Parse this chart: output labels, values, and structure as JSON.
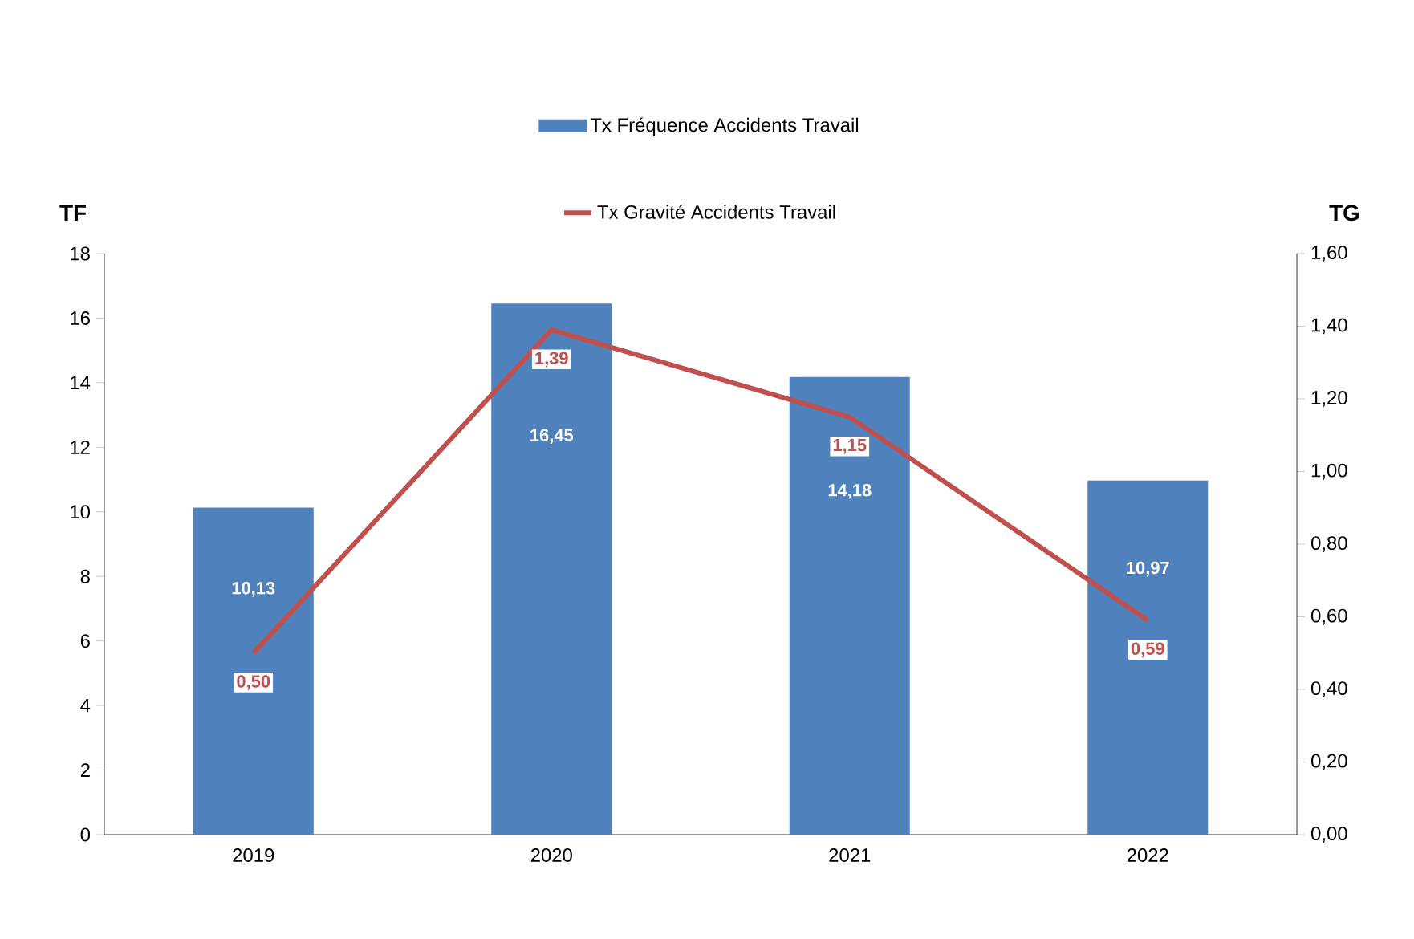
{
  "chart_data": {
    "type": "bar",
    "categories": [
      "2019",
      "2020",
      "2021",
      "2022"
    ],
    "ylabel": "TF",
    "y2label": "TG",
    "ylim": [
      0,
      18
    ],
    "yticks": [
      0,
      2,
      4,
      6,
      8,
      10,
      12,
      14,
      16,
      18
    ],
    "y2lim": [
      0,
      1.6
    ],
    "y2ticks": [
      {
        "value": 0,
        "label": "0,00"
      },
      {
        "value": 0.2,
        "label": "0,20"
      },
      {
        "value": 0.4,
        "label": "0,40"
      },
      {
        "value": 0.6,
        "label": "0,60"
      },
      {
        "value": 0.8,
        "label": "0,80"
      },
      {
        "value": 1.0,
        "label": "1,00"
      },
      {
        "value": 1.2,
        "label": "1,20"
      },
      {
        "value": 1.4,
        "label": "1,40"
      },
      {
        "value": 1.6,
        "label": "1,60"
      }
    ],
    "legend": "top",
    "series": [
      {
        "name": "Tx Fréquence Accidents Travail",
        "color": "#4f81bd",
        "values": [
          10.13,
          16.45,
          14.18,
          10.97
        ],
        "value_labels": [
          "10,13",
          "16,45",
          "14,18",
          "10,97"
        ]
      },
      {
        "name": "Tx Gravité Accidents Travail",
        "type": "line",
        "axis": "y2",
        "color": "#c0504d",
        "values": [
          0.5,
          1.39,
          1.15,
          0.59
        ],
        "value_labels": [
          "0,50",
          "1,39",
          "1,15",
          "0,59"
        ]
      }
    ]
  }
}
